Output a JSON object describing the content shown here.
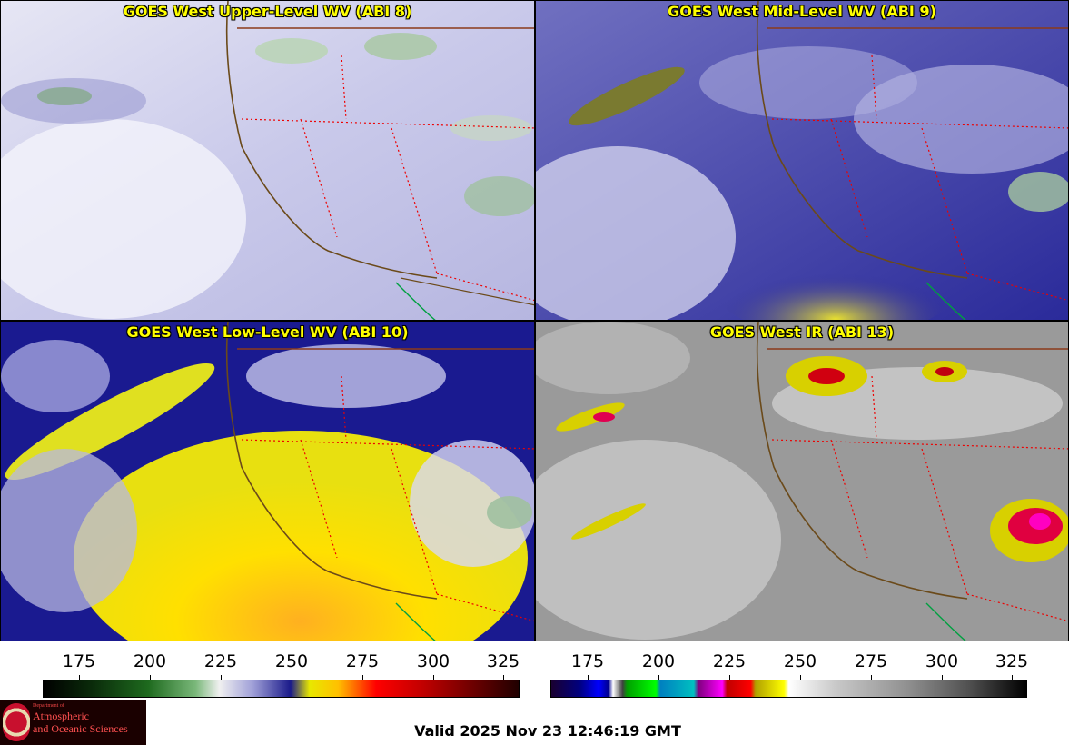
{
  "panels": [
    {
      "title": "GOES West Upper-Level WV (ABI 8)",
      "scheme": "wv-upper"
    },
    {
      "title": "GOES West Mid-Level WV (ABI 9)",
      "scheme": "wv-mid"
    },
    {
      "title": "GOES West Low-Level WV (ABI 10)",
      "scheme": "wv-low"
    },
    {
      "title": "GOES West IR (ABI 13)",
      "scheme": "ir"
    }
  ],
  "colorbars": [
    {
      "name": "wv-scale",
      "ticks": [
        "175",
        "200",
        "225",
        "250",
        "275",
        "300",
        "325"
      ]
    },
    {
      "name": "ir-scale",
      "ticks": [
        "175",
        "200",
        "225",
        "250",
        "275",
        "300",
        "325"
      ]
    }
  ],
  "logo": {
    "line1": "Department of",
    "line2": "Atmospheric",
    "line3": "and Oceanic Sciences"
  },
  "valid_time": "Valid 2025 Nov 23 12:46:19 GMT"
}
